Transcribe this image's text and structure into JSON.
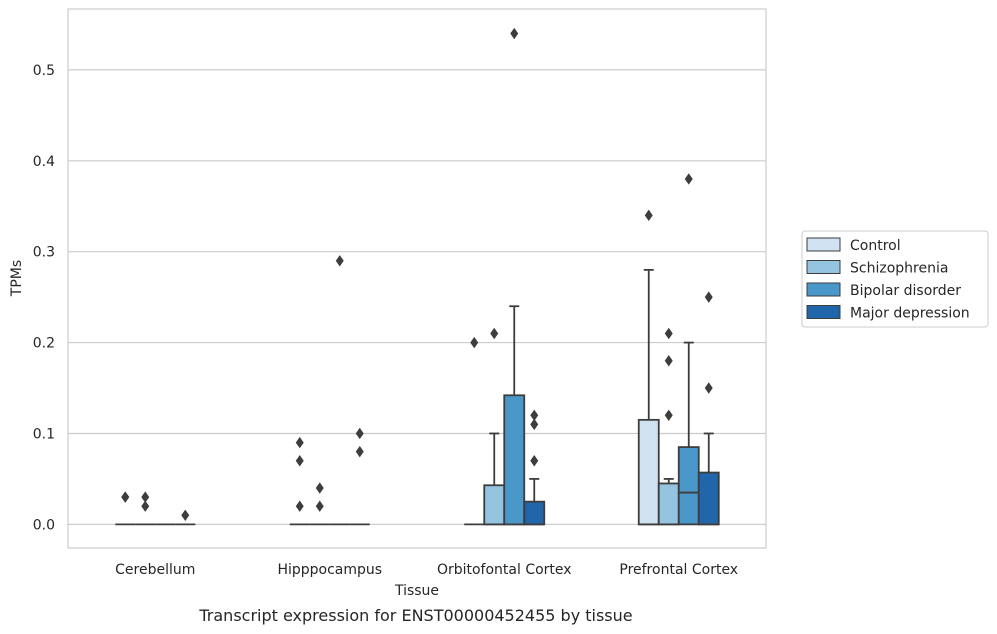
{
  "caption": "Transcript expression for ENST00000452455 by tissue",
  "chart_data": {
    "type": "boxplot",
    "xlabel": "Tissue",
    "ylabel": "TPMs",
    "ylim": [
      -0.026,
      0.567
    ],
    "yticks": [
      0.0,
      0.1,
      0.2,
      0.3,
      0.4,
      0.5
    ],
    "ytick_labels": [
      "0.0",
      "0.1",
      "0.2",
      "0.3",
      "0.4",
      "0.5"
    ],
    "grid": "horizontal",
    "legend_position": "right",
    "categories": [
      "Cerebellum",
      "Hipppocampus",
      "Orbitofontal Cortex",
      "Prefrontal Cortex"
    ],
    "series": [
      {
        "name": "Control",
        "color": "#d0e1f2",
        "boxes": [
          {
            "q1": 0,
            "median": 0,
            "q3": 0,
            "whisker_low": 0,
            "whisker_high": 0,
            "outliers": [
              0.03,
              0.03
            ]
          },
          {
            "q1": 0,
            "median": 0,
            "q3": 0,
            "whisker_low": 0,
            "whisker_high": 0,
            "outliers": [
              0.02,
              0.07,
              0.09
            ]
          },
          {
            "q1": 0,
            "median": 0,
            "q3": 0,
            "whisker_low": 0,
            "whisker_high": 0,
            "outliers": [
              0.2
            ]
          },
          {
            "q1": 0,
            "median": 0,
            "q3": 0.115,
            "whisker_low": 0,
            "whisker_high": 0.28,
            "outliers": [
              0.34
            ]
          }
        ]
      },
      {
        "name": "Schizophrenia",
        "color": "#94c4df",
        "boxes": [
          {
            "q1": 0,
            "median": 0,
            "q3": 0,
            "whisker_low": 0,
            "whisker_high": 0,
            "outliers": [
              0.02,
              0.03
            ]
          },
          {
            "q1": 0,
            "median": 0,
            "q3": 0,
            "whisker_low": 0,
            "whisker_high": 0,
            "outliers": [
              0.02,
              0.04
            ]
          },
          {
            "q1": 0,
            "median": 0,
            "q3": 0.043,
            "whisker_low": 0,
            "whisker_high": 0.1,
            "outliers": [
              0.21
            ]
          },
          {
            "q1": 0,
            "median": 0,
            "q3": 0.045,
            "whisker_low": 0,
            "whisker_high": 0.05,
            "outliers": [
              0.12,
              0.18,
              0.21
            ]
          }
        ]
      },
      {
        "name": "Bipolar disorder",
        "color": "#4a98c9",
        "boxes": [
          {
            "q1": 0,
            "median": 0,
            "q3": 0,
            "whisker_low": 0,
            "whisker_high": 0,
            "outliers": []
          },
          {
            "q1": 0,
            "median": 0,
            "q3": 0,
            "whisker_low": 0,
            "whisker_high": 0,
            "outliers": [
              0.29
            ]
          },
          {
            "q1": 0,
            "median": 0,
            "q3": 0.142,
            "whisker_low": 0,
            "whisker_high": 0.24,
            "outliers": [
              0.54
            ]
          },
          {
            "q1": 0,
            "median": 0.035,
            "q3": 0.085,
            "whisker_low": 0,
            "whisker_high": 0.2,
            "outliers": [
              0.38
            ]
          }
        ]
      },
      {
        "name": "Major depression",
        "color": "#2165ab",
        "boxes": [
          {
            "q1": 0,
            "median": 0,
            "q3": 0,
            "whisker_low": 0,
            "whisker_high": 0,
            "outliers": [
              0.01
            ]
          },
          {
            "q1": 0,
            "median": 0,
            "q3": 0,
            "whisker_low": 0,
            "whisker_high": 0,
            "outliers": [
              0.08,
              0.1
            ]
          },
          {
            "q1": 0,
            "median": 0,
            "q3": 0.025,
            "whisker_low": 0,
            "whisker_high": 0.05,
            "outliers": [
              0.07,
              0.11,
              0.12
            ]
          },
          {
            "q1": 0,
            "median": 0,
            "q3": 0.057,
            "whisker_low": 0,
            "whisker_high": 0.1,
            "outliers": [
              0.15,
              0.25
            ]
          }
        ]
      }
    ]
  }
}
